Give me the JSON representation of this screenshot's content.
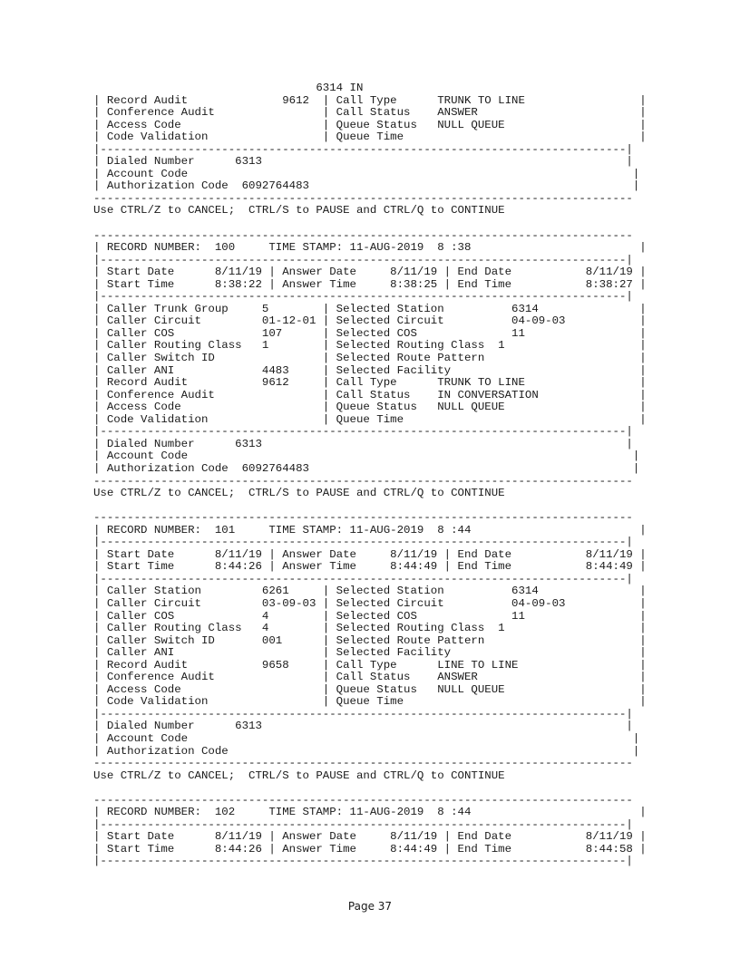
{
  "lines": [
    "                                 6314 IN",
    "| Record Audit              9612  | Call Type      TRUNK TO LINE                 |",
    "| Conference Audit                | Call Status    ANSWER                        |",
    "| Access Code                     | Queue Status   NULL QUEUE                    |",
    "| Code Validation                 | Queue Time                                   |",
    "|------------------------------------------------------------------------------|",
    "| Dialed Number      6313                                                      |",
    "| Account Code                                                                  |",
    "| Authorization Code  6092764483                                                |",
    "--------------------------------------------------------------------------------",
    "Use CTRL/Z to CANCEL;  CTRL/S to PAUSE and CTRL/Q to CONTINUE",
    "",
    "--------------------------------------------------------------------------------",
    "| RECORD NUMBER:  100     TIME STAMP: 11-AUG-2019  8 :38                         |",
    "|------------------------------------------------------------------------------|",
    "| Start Date      8/11/19 | Answer Date     8/11/19 | End Date           8/11/19 |",
    "| Start Time      8:38:22 | Answer Time     8:38:25 | End Time           8:38:27 |",
    "|------------------------------------------------------------------------------|",
    "| Caller Trunk Group     5        | Selected Station          6314               |",
    "| Caller Circuit         01-12-01 | Selected Circuit          04-09-03           |",
    "| Caller COS             107      | Selected COS              11                 |",
    "| Caller Routing Class   1        | Selected Routing Class  1                    |",
    "| Caller Switch ID                | Selected Route Pattern                       |",
    "| Caller ANI             4483     | Selected Facility                            |",
    "| Record Audit           9612     | Call Type      TRUNK TO LINE                 |",
    "| Conference Audit                | Call Status    IN CONVERSATION               |",
    "| Access Code                     | Queue Status   NULL QUEUE                    |",
    "| Code Validation                 | Queue Time                                   |",
    "|------------------------------------------------------------------------------|",
    "| Dialed Number      6313                                                      |",
    "| Account Code                                                                  |",
    "| Authorization Code  6092764483                                                |",
    "--------------------------------------------------------------------------------",
    "Use CTRL/Z to CANCEL;  CTRL/S to PAUSE and CTRL/Q to CONTINUE",
    "",
    "--------------------------------------------------------------------------------",
    "| RECORD NUMBER:  101     TIME STAMP: 11-AUG-2019  8 :44                         |",
    "|------------------------------------------------------------------------------|",
    "| Start Date      8/11/19 | Answer Date     8/11/19 | End Date           8/11/19 |",
    "| Start Time      8:44:26 | Answer Time     8:44:49 | End Time           8:44:49 |",
    "|------------------------------------------------------------------------------|",
    "| Caller Station         6261     | Selected Station          6314               |",
    "| Caller Circuit         03-09-03 | Selected Circuit          04-09-03           |",
    "| Caller COS             4        | Selected COS              11                 |",
    "| Caller Routing Class   4        | Selected Routing Class  1                    |",
    "| Caller Switch ID       001      | Selected Route Pattern                       |",
    "| Caller ANI                      | Selected Facility                            |",
    "| Record Audit           9658     | Call Type      LINE TO LINE                  |",
    "| Conference Audit                | Call Status    ANSWER                        |",
    "| Access Code                     | Queue Status   NULL QUEUE                    |",
    "| Code Validation                 | Queue Time                                   |",
    "|------------------------------------------------------------------------------|",
    "| Dialed Number      6313                                                      |",
    "| Account Code                                                                  |",
    "| Authorization Code                                                            |",
    "--------------------------------------------------------------------------------",
    "Use CTRL/Z to CANCEL;  CTRL/S to PAUSE and CTRL/Q to CONTINUE",
    "",
    "--------------------------------------------------------------------------------",
    "| RECORD NUMBER:  102     TIME STAMP: 11-AUG-2019  8 :44                         |",
    "|------------------------------------------------------------------------------|",
    "| Start Date      8/11/19 | Answer Date     8/11/19 | End Date           8/11/19 |",
    "| Start Time      8:44:26 | Answer Time     8:44:49 | End Time           8:44:58 |",
    "|------------------------------------------------------------------------------|"
  ],
  "footer": {
    "page_label": "Page 37"
  }
}
